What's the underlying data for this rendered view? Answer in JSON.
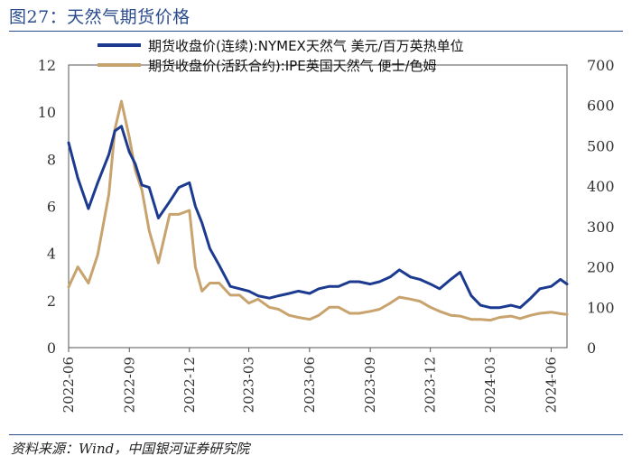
{
  "title": "图27：天然气期货价格",
  "source": "资料来源：Wind，中国银河证券研究院",
  "chart_data": {
    "type": "line",
    "x_dates": [
      "2022-06-01",
      "2022-06-15",
      "2022-07-01",
      "2022-07-15",
      "2022-08-01",
      "2022-08-10",
      "2022-08-20",
      "2022-09-01",
      "2022-09-10",
      "2022-09-20",
      "2022-10-01",
      "2022-10-15",
      "2022-11-01",
      "2022-11-15",
      "2022-12-01",
      "2022-12-10",
      "2022-12-20",
      "2023-01-01",
      "2023-01-15",
      "2023-02-01",
      "2023-02-15",
      "2023-03-01",
      "2023-03-15",
      "2023-04-01",
      "2023-04-15",
      "2023-05-01",
      "2023-05-15",
      "2023-06-01",
      "2023-06-15",
      "2023-07-01",
      "2023-07-15",
      "2023-08-01",
      "2023-08-15",
      "2023-09-01",
      "2023-09-15",
      "2023-10-01",
      "2023-10-15",
      "2023-11-01",
      "2023-11-15",
      "2023-12-01",
      "2023-12-15",
      "2024-01-01",
      "2024-01-15",
      "2024-02-01",
      "2024-02-15",
      "2024-03-01",
      "2024-03-15",
      "2024-04-01",
      "2024-04-15",
      "2024-05-01",
      "2024-05-15",
      "2024-06-01",
      "2024-06-15",
      "2024-06-25"
    ],
    "x_ticks": [
      "2022-06",
      "2022-09",
      "2022-12",
      "2023-03",
      "2023-06",
      "2023-09",
      "2023-12",
      "2024-03",
      "2024-06"
    ],
    "y_left": {
      "ticks": [
        "0",
        "2",
        "4",
        "6",
        "8",
        "10",
        "12"
      ],
      "ylim": [
        0,
        12
      ]
    },
    "y_right": {
      "ticks": [
        "0",
        "100",
        "200",
        "300",
        "400",
        "500",
        "600",
        "700"
      ],
      "ylim": [
        0,
        700
      ]
    },
    "legend_position": "top",
    "series": [
      {
        "name": "期货收盘价(连续):NYMEX天然气 美元/百万英热单位",
        "axis": "left",
        "color": "#1c3a8f",
        "values": [
          8.7,
          7.2,
          5.9,
          7.0,
          8.2,
          9.2,
          9.4,
          8.3,
          7.8,
          6.9,
          6.8,
          5.5,
          6.2,
          6.8,
          7.0,
          6.0,
          5.3,
          4.2,
          3.5,
          2.6,
          2.5,
          2.4,
          2.2,
          2.1,
          2.2,
          2.3,
          2.4,
          2.3,
          2.5,
          2.6,
          2.6,
          2.8,
          2.8,
          2.7,
          2.8,
          3.0,
          3.3,
          3.0,
          2.9,
          2.7,
          2.5,
          2.9,
          3.2,
          2.2,
          1.8,
          1.7,
          1.7,
          1.8,
          1.7,
          2.1,
          2.5,
          2.6,
          2.9,
          2.7
        ]
      },
      {
        "name": "期货收盘价(活跃合约):IPE英国天然气 便士/色姆",
        "axis": "right",
        "color": "#c8a36e",
        "values": [
          150,
          200,
          160,
          230,
          380,
          540,
          610,
          520,
          440,
          390,
          290,
          210,
          330,
          330,
          340,
          200,
          140,
          160,
          160,
          130,
          130,
          110,
          120,
          100,
          95,
          80,
          75,
          70,
          80,
          100,
          100,
          85,
          85,
          90,
          95,
          110,
          125,
          120,
          115,
          100,
          90,
          80,
          78,
          70,
          70,
          68,
          75,
          78,
          72,
          80,
          85,
          88,
          84,
          82
        ]
      }
    ]
  }
}
